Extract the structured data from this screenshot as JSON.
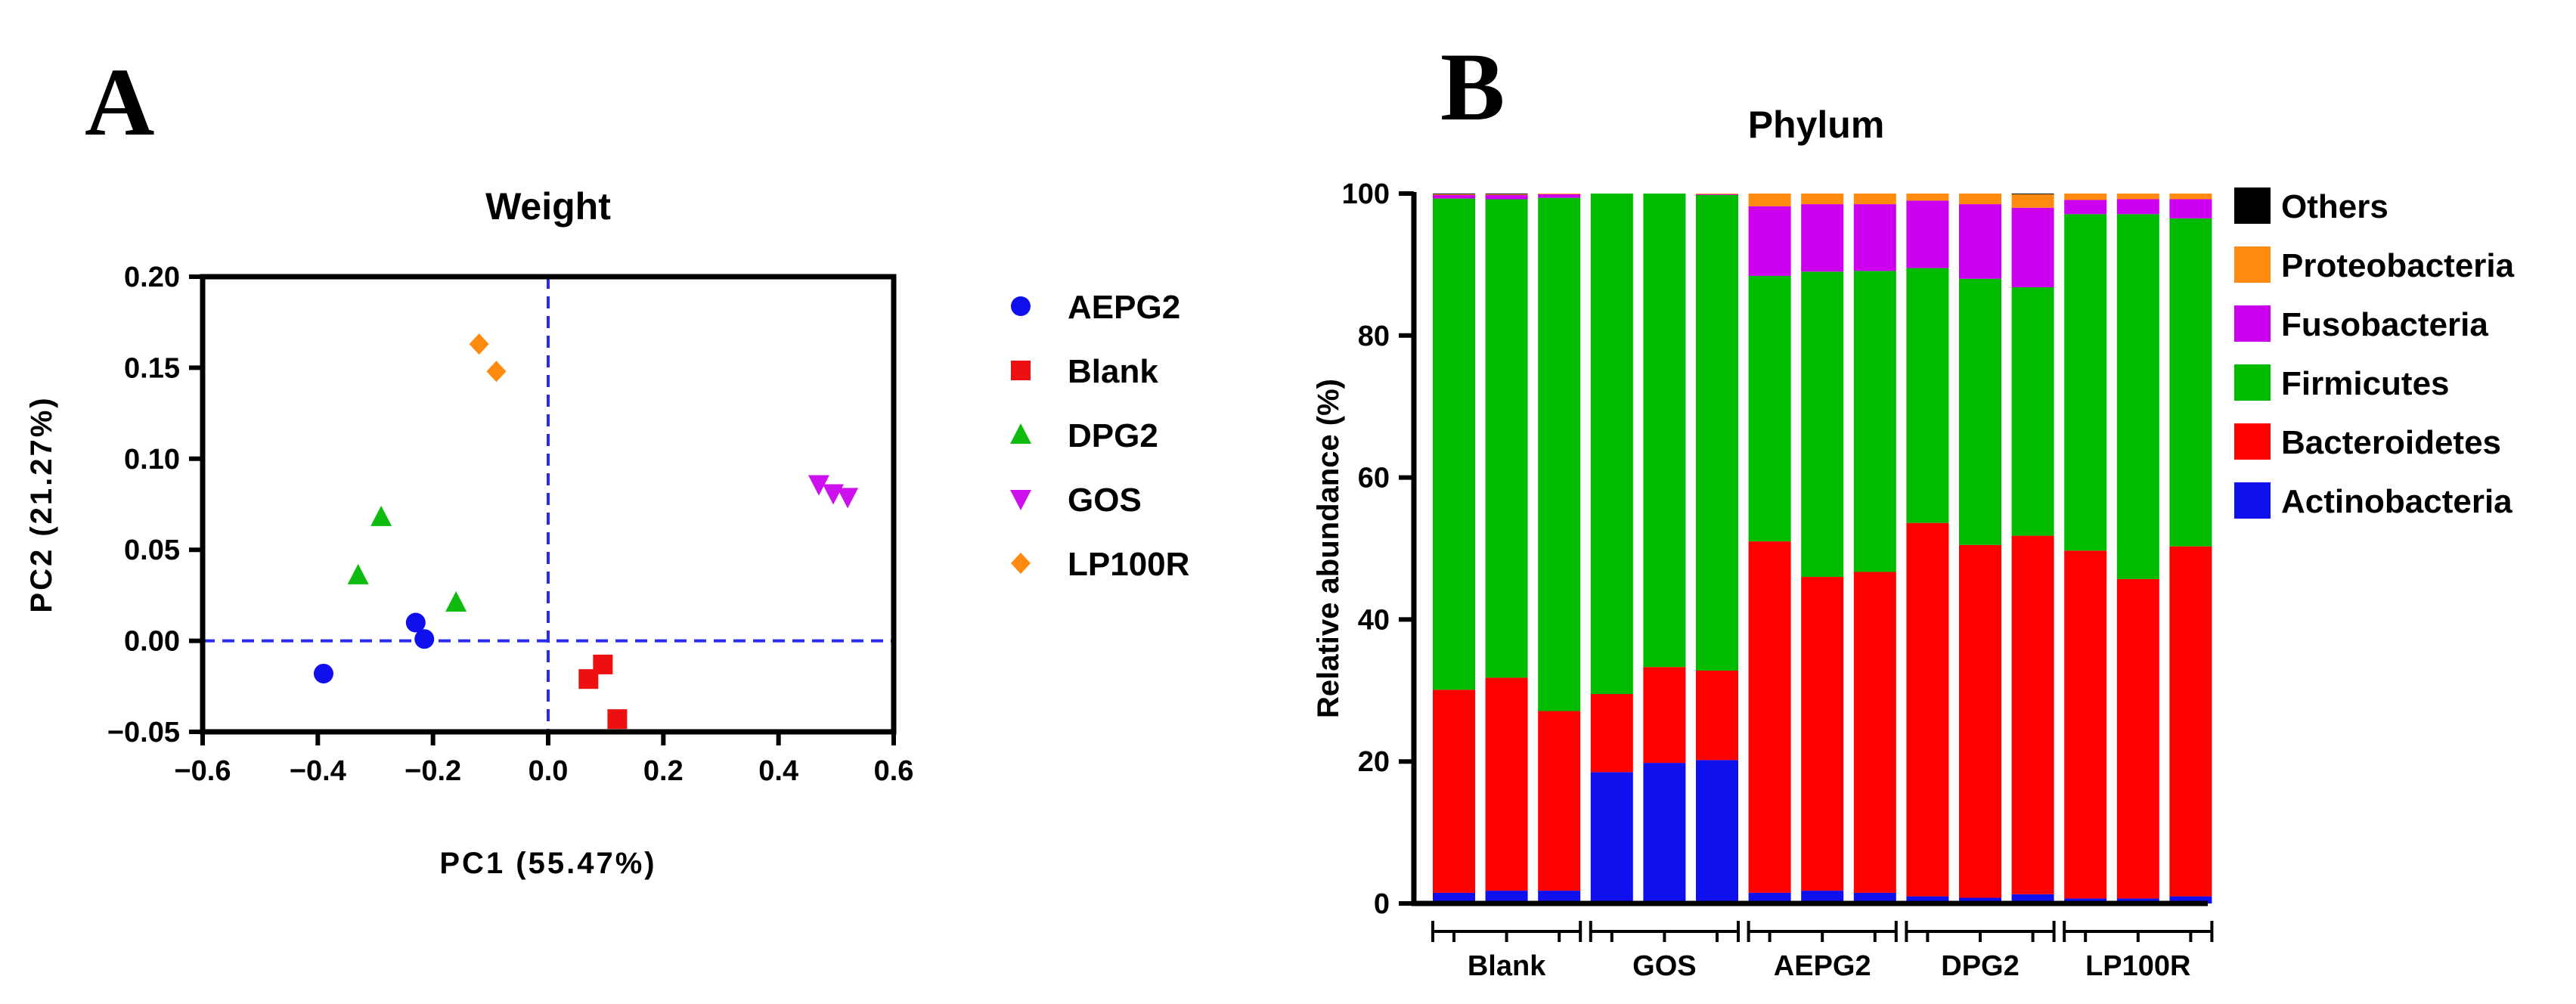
{
  "panels": {
    "a": "A",
    "b": "B"
  },
  "chart_data": [
    {
      "type": "scatter",
      "title": "Weight",
      "xlabel": "PC1 (55.47%)",
      "ylabel": "PC2 (21.27%)",
      "xlim": [
        -0.6,
        0.6
      ],
      "ylim": [
        -0.05,
        0.2
      ],
      "xticks": [
        -0.6,
        -0.4,
        -0.2,
        0.0,
        0.2,
        0.4,
        0.6
      ],
      "yticks": [
        -0.05,
        0.0,
        0.05,
        0.1,
        0.15,
        0.2
      ],
      "xtick_labels": [
        "−0.6",
        "−0.4",
        "−0.2",
        "0.0",
        "0.2",
        "0.4",
        "0.6"
      ],
      "ytick_labels": [
        "−0.05",
        "0.00",
        "0.05",
        "0.10",
        "0.15",
        "0.20"
      ],
      "reference_lines": {
        "x": 0,
        "y": 0,
        "style": "dashed",
        "color": "#2b2bf0"
      },
      "series": [
        {
          "name": "AEPG2",
          "marker": "circle",
          "color": "#1010ee",
          "points": [
            [
              -0.39,
              -0.018
            ],
            [
              -0.23,
              0.01
            ],
            [
              -0.215,
              0.001
            ]
          ]
        },
        {
          "name": "Blank",
          "marker": "square",
          "color": "#ee1010",
          "points": [
            [
              0.07,
              -0.021
            ],
            [
              0.095,
              -0.013
            ],
            [
              0.12,
              -0.043
            ]
          ]
        },
        {
          "name": "DPG2",
          "marker": "triangle-up",
          "color": "#10bb10",
          "points": [
            [
              -0.33,
              0.036
            ],
            [
              -0.29,
              0.068
            ],
            [
              -0.16,
              0.021
            ]
          ]
        },
        {
          "name": "GOS",
          "marker": "triangle-down",
          "color": "#cc10ee",
          "points": [
            [
              0.47,
              0.086
            ],
            [
              0.495,
              0.081
            ],
            [
              0.52,
              0.079
            ]
          ]
        },
        {
          "name": "LP100R",
          "marker": "diamond",
          "color": "#ff8a10",
          "points": [
            [
              -0.12,
              0.163
            ],
            [
              -0.09,
              0.148
            ]
          ]
        }
      ]
    },
    {
      "type": "bar",
      "stacked": true,
      "title": "Phylum",
      "ylabel": "Relative abundance (%)",
      "ylim": [
        0,
        100
      ],
      "yticks": [
        0,
        20,
        40,
        60,
        80,
        100
      ],
      "ytick_labels": [
        "0",
        "20",
        "40",
        "60",
        "80",
        "100"
      ],
      "groups": [
        {
          "name": "Blank",
          "bars": 3
        },
        {
          "name": "GOS",
          "bars": 3
        },
        {
          "name": "AEPG2",
          "bars": 3
        },
        {
          "name": "DPG2",
          "bars": 3
        },
        {
          "name": "LP100R",
          "bars": 3
        }
      ],
      "legend_order": [
        "Others",
        "Proteobacteria",
        "Fusobacteria",
        "Firmicutes",
        "Bacteroidetes",
        "Actinobacteria"
      ],
      "series": [
        {
          "name": "Actinobacteria",
          "color": "#1010ee",
          "values": [
            1.5,
            1.8,
            1.8,
            18.5,
            19.8,
            20.2,
            1.5,
            1.8,
            1.5,
            1.0,
            0.8,
            1.3,
            0.7,
            0.7,
            1.0
          ]
        },
        {
          "name": "Bacteroidetes",
          "color": "#ff0000",
          "values": [
            28.6,
            30.0,
            25.3,
            11.0,
            13.5,
            12.6,
            49.5,
            44.2,
            45.2,
            52.6,
            49.7,
            50.5,
            49.0,
            45.0,
            49.3
          ]
        },
        {
          "name": "Firmicutes",
          "color": "#00bb00",
          "values": [
            69.2,
            67.4,
            72.3,
            70.5,
            66.7,
            67.0,
            37.4,
            43.0,
            42.4,
            35.9,
            37.5,
            35.0,
            47.4,
            51.4,
            46.2
          ]
        },
        {
          "name": "Fusobacteria",
          "color": "#cc00ee",
          "values": [
            0.5,
            0.6,
            0.5,
            0.0,
            0.0,
            0.1,
            9.8,
            9.5,
            9.4,
            9.5,
            10.5,
            11.2,
            2.0,
            2.1,
            2.7
          ]
        },
        {
          "name": "Proteobacteria",
          "color": "#ff8a10",
          "values": [
            0.1,
            0.1,
            0.1,
            0.0,
            0.0,
            0.1,
            1.8,
            1.5,
            1.5,
            1.0,
            1.5,
            1.9,
            0.9,
            0.8,
            0.8
          ]
        },
        {
          "name": "Others",
          "color": "#000000",
          "values": [
            0.1,
            0.1,
            0.0,
            0.0,
            0.0,
            0.0,
            0.0,
            0.0,
            0.0,
            0.0,
            0.0,
            0.1,
            0.0,
            0.0,
            0.0
          ]
        }
      ]
    }
  ]
}
